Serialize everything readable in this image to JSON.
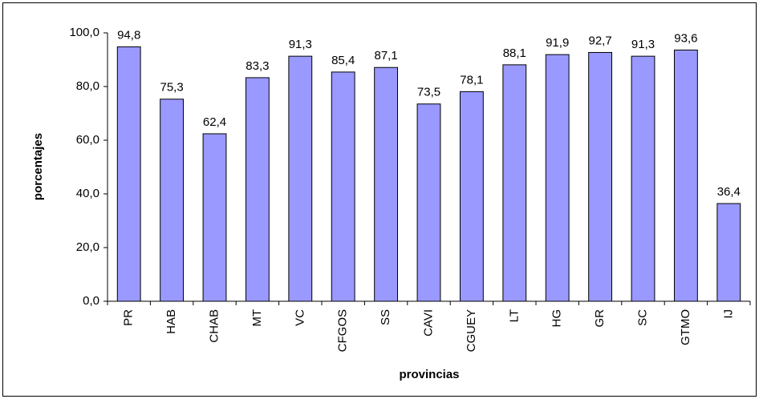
{
  "chart_data": {
    "type": "bar",
    "x_label": "provincias",
    "y_label": "porcentajes",
    "categories": [
      "PR",
      "HAB",
      "CHAB",
      "MT",
      "VC",
      "CFGOS",
      "SS",
      "CAVI",
      "CGUEY",
      "LT",
      "HG",
      "GR",
      "SC",
      "GTMO",
      "IJ"
    ],
    "values": [
      94.8,
      75.3,
      62.4,
      83.3,
      91.3,
      85.4,
      87.1,
      73.5,
      78.1,
      88.1,
      91.9,
      92.7,
      91.3,
      93.6,
      36.4
    ],
    "value_labels": [
      "94,8",
      "75,3",
      "62,4",
      "83,3",
      "91,3",
      "85,4",
      "87,1",
      "73,5",
      "78,1",
      "88,1",
      "91,9",
      "92,7",
      "91,3",
      "93,6",
      "36,4"
    ],
    "color": "#9999ff",
    "ylim": [
      0,
      100
    ],
    "yticks": [
      {
        "value": 0,
        "label": "0,0"
      },
      {
        "value": 20,
        "label": "20,0"
      },
      {
        "value": 40,
        "label": "40,0"
      },
      {
        "value": 60,
        "label": "60,0"
      },
      {
        "value": 80,
        "label": "80,0"
      },
      {
        "value": 100,
        "label": "100,0"
      }
    ],
    "grid": false
  }
}
